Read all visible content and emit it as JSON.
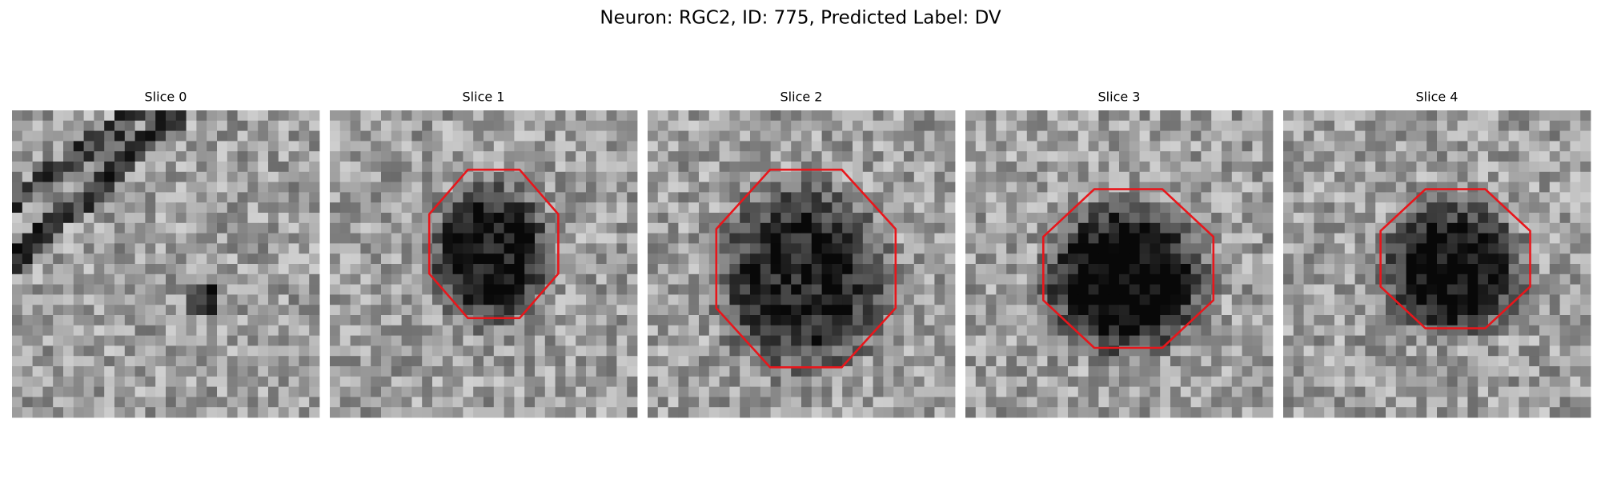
{
  "header": {
    "title": "Neuron: RGC2, ID: 775, Predicted Label: DV"
  },
  "panels": [
    {
      "title": "Slice 0"
    },
    {
      "title": "Slice 1"
    },
    {
      "title": "Slice 2"
    },
    {
      "title": "Slice 3"
    },
    {
      "title": "Slice 4"
    }
  ]
}
